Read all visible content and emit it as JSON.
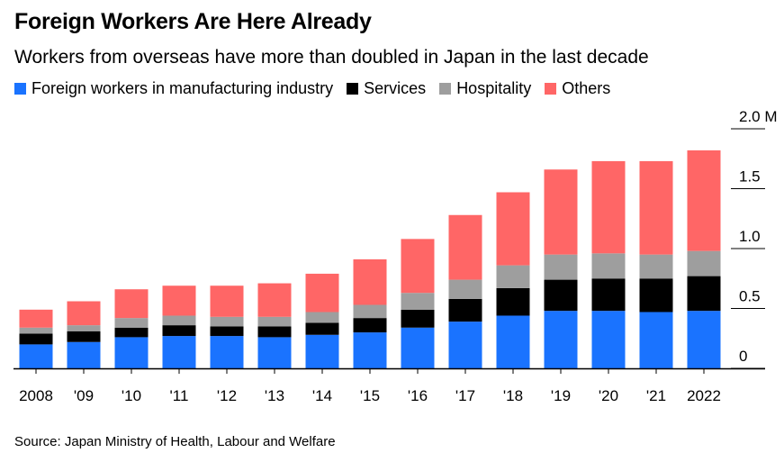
{
  "title": "Foreign Workers Are Here Already",
  "subtitle": "Workers from overseas have more than doubled in Japan in the last decade",
  "source": "Source: Japan Ministry of Health, Labour and Welfare",
  "chart_data": {
    "type": "bar",
    "stacked": true,
    "categories": [
      "2008",
      "'09",
      "'10",
      "'11",
      "'12",
      "'13",
      "'14",
      "'15",
      "'16",
      "'17",
      "'18",
      "'19",
      "'20",
      "'21",
      "2022"
    ],
    "series": [
      {
        "name": "Foreign workers in manufacturing industry",
        "color": "#1a73ff",
        "values": [
          0.2,
          0.22,
          0.26,
          0.27,
          0.27,
          0.26,
          0.28,
          0.3,
          0.34,
          0.39,
          0.44,
          0.48,
          0.48,
          0.47,
          0.48
        ]
      },
      {
        "name": "Services",
        "color": "#000000",
        "values": [
          0.09,
          0.09,
          0.08,
          0.09,
          0.08,
          0.09,
          0.1,
          0.12,
          0.15,
          0.19,
          0.23,
          0.26,
          0.27,
          0.28,
          0.29
        ]
      },
      {
        "name": "Hospitality",
        "color": "#9e9e9e",
        "values": [
          0.05,
          0.05,
          0.08,
          0.08,
          0.08,
          0.08,
          0.09,
          0.11,
          0.14,
          0.16,
          0.19,
          0.21,
          0.21,
          0.2,
          0.21
        ]
      },
      {
        "name": "Others",
        "color": "#ff6666",
        "values": [
          0.15,
          0.2,
          0.24,
          0.25,
          0.26,
          0.28,
          0.32,
          0.38,
          0.45,
          0.54,
          0.61,
          0.71,
          0.77,
          0.78,
          0.84
        ]
      }
    ],
    "ylim": [
      0,
      2.0
    ],
    "yticks": [
      {
        "value": 0,
        "label": "0"
      },
      {
        "value": 0.5,
        "label": "0.5"
      },
      {
        "value": 1.0,
        "label": "1.0"
      },
      {
        "value": 1.5,
        "label": "1.5"
      },
      {
        "value": 2.0,
        "label": "2.0 M"
      }
    ],
    "ylabel": "",
    "xlabel": "",
    "grid": false,
    "legend_position": "top-left",
    "axis_color": "#000000"
  }
}
